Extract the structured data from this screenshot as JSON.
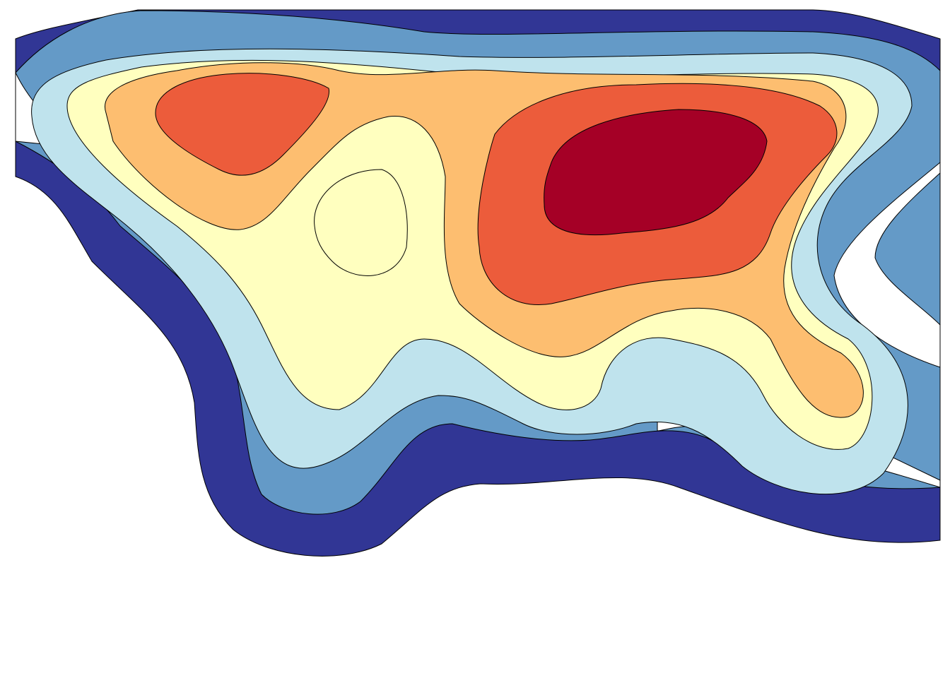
{
  "chart_data": {
    "type": "contour",
    "colors": [
      "#313695",
      "#649ac7",
      "#bfe3ed",
      "#ffffbf",
      "#fdbe70",
      "#ec5c3b",
      "#a50026"
    ]
  }
}
